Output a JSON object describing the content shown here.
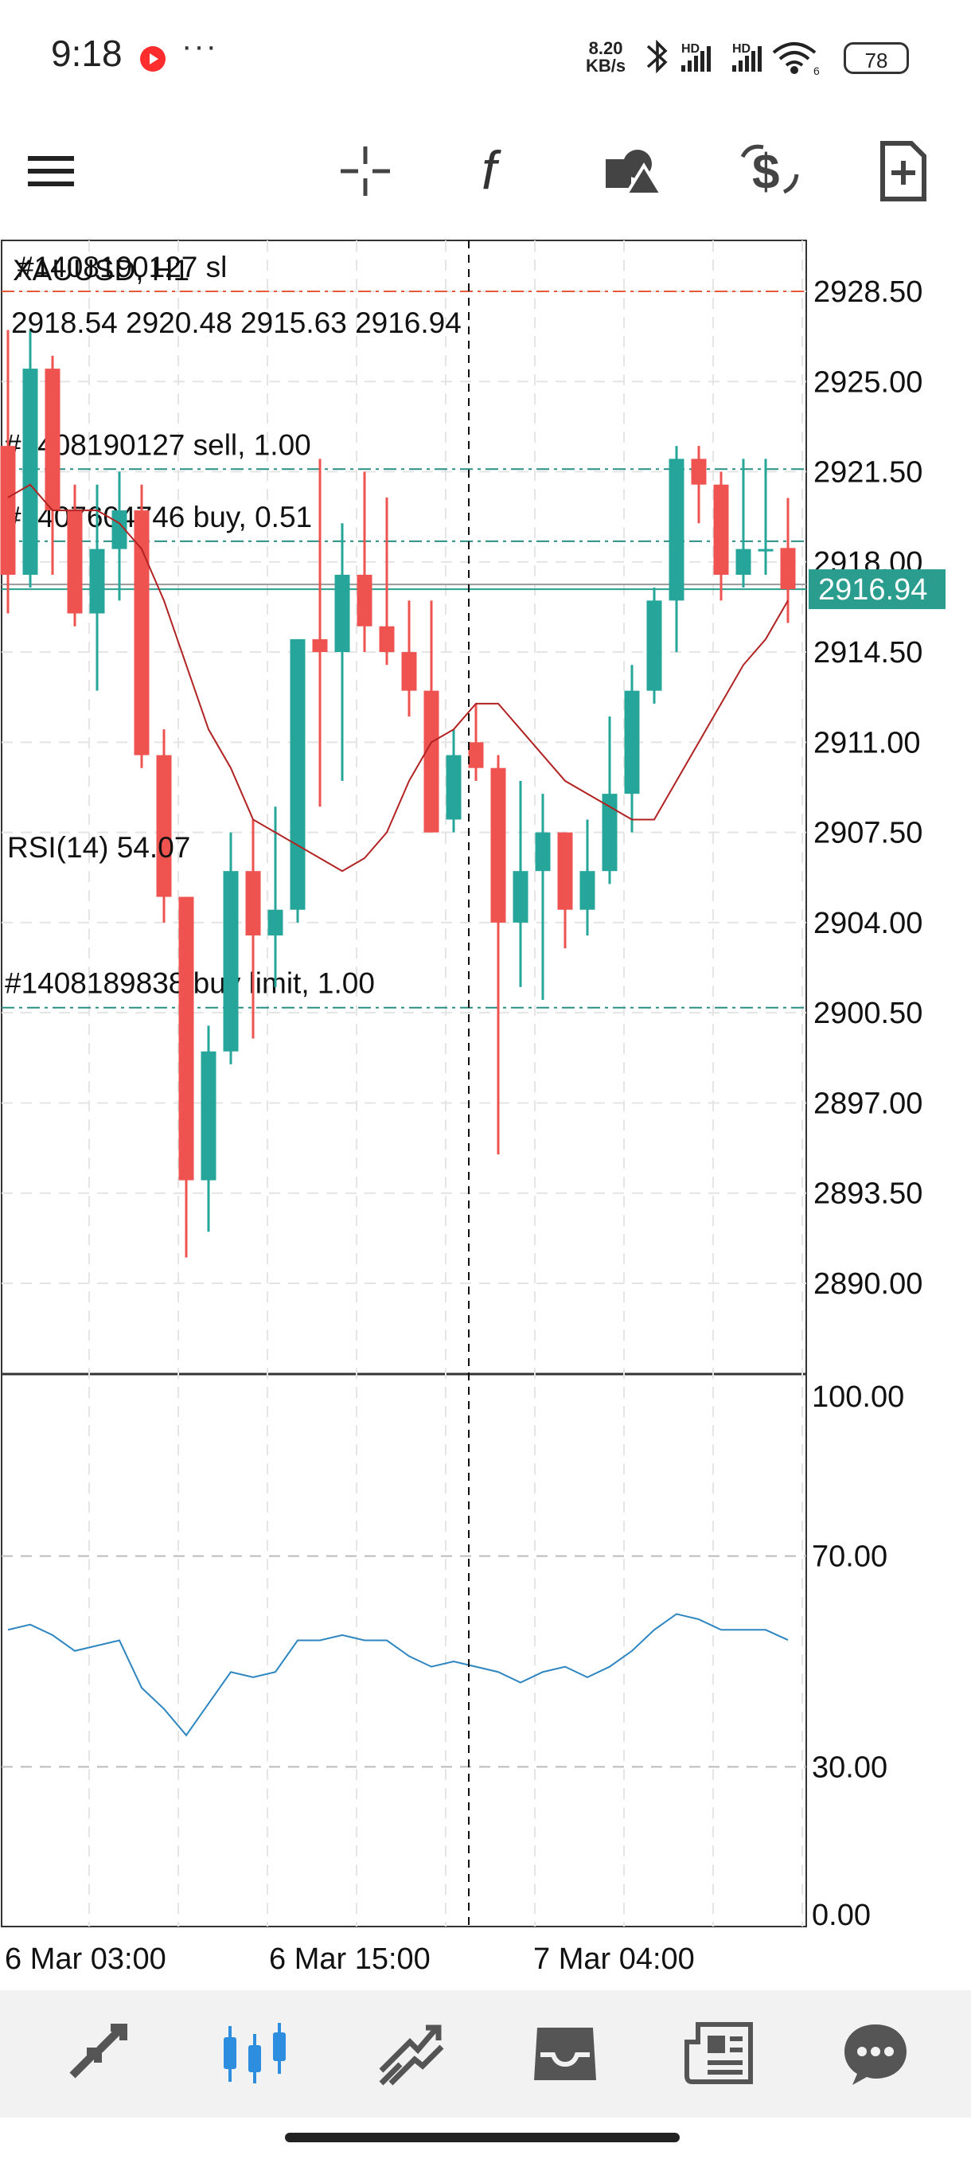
{
  "status_bar": {
    "time": "9:18",
    "net_speed_value": "8.20",
    "net_speed_unit": "KB/s",
    "battery": "78",
    "icons": [
      "record-icon",
      "more-dots-icon",
      "bluetooth-icon",
      "hd-signal-icon",
      "hd-signal-icon",
      "wifi-6-icon"
    ]
  },
  "toolbar": {
    "buttons": [
      "menu-icon",
      "crosshair-icon",
      "indicator-f-icon",
      "objects-icon",
      "currency-icon",
      "new-order-icon"
    ]
  },
  "chart": {
    "symbol": "XAUUSD, H1",
    "ohlc": "2918.54 2920.48 2915.63 2916.94",
    "current_price": "2916.94",
    "orders": [
      {
        "label": "#1408190127 sl",
        "price": 2928.5,
        "color": "#e55a3a"
      },
      {
        "label": "#1408190127 sell, 1.00",
        "price": 2921.6,
        "color": "#2a8f84"
      },
      {
        "label": "#1407604746 buy, 0.51",
        "price": 2918.8,
        "color": "#2a8f84"
      },
      {
        "label": "#1408189838 buy limit, 1.00",
        "price": 2900.7,
        "color": "#2a8f84"
      }
    ],
    "price_axis": [
      "2928.50",
      "2925.00",
      "2921.50",
      "2918.00",
      "2914.50",
      "2911.00",
      "2907.50",
      "2904.00",
      "2900.50",
      "2897.00",
      "2893.50",
      "2890.00"
    ],
    "time_axis": [
      "6 Mar 03:00",
      "6 Mar 15:00",
      "7 Mar 04:00"
    ],
    "rsi": {
      "label": "RSI(14) 54.07",
      "axis": [
        "100.00",
        "70.00",
        "30.00",
        "0.00"
      ]
    }
  },
  "chart_data": {
    "type": "candlestick",
    "symbol": "XAUUSD",
    "timeframe": "H1",
    "ylim": [
      2887,
      2931
    ],
    "candles": [
      {
        "o": 2922.5,
        "h": 2927.0,
        "l": 2916.0,
        "c": 2917.5
      },
      {
        "o": 2917.5,
        "h": 2927.0,
        "l": 2917.0,
        "c": 2925.5
      },
      {
        "o": 2925.5,
        "h": 2926.0,
        "l": 2917.5,
        "c": 2920.0
      },
      {
        "o": 2920.0,
        "h": 2921.0,
        "l": 2915.5,
        "c": 2916.0
      },
      {
        "o": 2916.0,
        "h": 2921.0,
        "l": 2913.0,
        "c": 2918.5
      },
      {
        "o": 2918.5,
        "h": 2921.5,
        "l": 2916.5,
        "c": 2920.0
      },
      {
        "o": 2920.0,
        "h": 2921.0,
        "l": 2910.0,
        "c": 2910.5
      },
      {
        "o": 2910.5,
        "h": 2911.5,
        "l": 2904.0,
        "c": 2905.0
      },
      {
        "o": 2905.0,
        "h": 2905.0,
        "l": 2891.0,
        "c": 2894.0
      },
      {
        "o": 2894.0,
        "h": 2900.0,
        "l": 2892.0,
        "c": 2899.0
      },
      {
        "o": 2899.0,
        "h": 2907.5,
        "l": 2898.5,
        "c": 2906.0
      },
      {
        "o": 2906.0,
        "h": 2908.0,
        "l": 2899.5,
        "c": 2903.5
      },
      {
        "o": 2903.5,
        "h": 2908.5,
        "l": 2901.5,
        "c": 2904.5
      },
      {
        "o": 2904.5,
        "h": 2915.0,
        "l": 2904.0,
        "c": 2915.0
      },
      {
        "o": 2915.0,
        "h": 2922.0,
        "l": 2908.5,
        "c": 2914.5
      },
      {
        "o": 2914.5,
        "h": 2919.5,
        "l": 2909.5,
        "c": 2917.5
      },
      {
        "o": 2917.5,
        "h": 2921.5,
        "l": 2914.5,
        "c": 2915.5
      },
      {
        "o": 2915.5,
        "h": 2920.5,
        "l": 2914.0,
        "c": 2914.5
      },
      {
        "o": 2914.5,
        "h": 2916.5,
        "l": 2912.0,
        "c": 2913.0
      },
      {
        "o": 2913.0,
        "h": 2916.5,
        "l": 2907.5,
        "c": 2907.5
      },
      {
        "o": 2908.0,
        "h": 2911.5,
        "l": 2907.5,
        "c": 2910.5
      },
      {
        "o": 2911.0,
        "h": 2912.5,
        "l": 2909.5,
        "c": 2910.0
      },
      {
        "o": 2910.0,
        "h": 2910.5,
        "l": 2895.0,
        "c": 2904.0
      },
      {
        "o": 2904.0,
        "h": 2909.5,
        "l": 2901.5,
        "c": 2906.0
      },
      {
        "o": 2906.0,
        "h": 2909.0,
        "l": 2901.0,
        "c": 2907.5
      },
      {
        "o": 2907.5,
        "h": 2907.5,
        "l": 2903.0,
        "c": 2904.5
      },
      {
        "o": 2904.5,
        "h": 2908.0,
        "l": 2903.5,
        "c": 2906.0
      },
      {
        "o": 2906.0,
        "h": 2912.0,
        "l": 2905.5,
        "c": 2909.0
      },
      {
        "o": 2909.0,
        "h": 2914.0,
        "l": 2907.5,
        "c": 2913.0
      },
      {
        "o": 2913.0,
        "h": 2917.0,
        "l": 2912.5,
        "c": 2916.5
      },
      {
        "o": 2916.5,
        "h": 2922.5,
        "l": 2914.5,
        "c": 2922.0
      },
      {
        "o": 2922.0,
        "h": 2922.5,
        "l": 2919.5,
        "c": 2921.0
      },
      {
        "o": 2921.0,
        "h": 2921.5,
        "l": 2916.5,
        "c": 2917.5
      },
      {
        "o": 2917.5,
        "h": 2922.0,
        "l": 2917.0,
        "c": 2918.5
      },
      {
        "o": 2918.5,
        "h": 2922.0,
        "l": 2917.5,
        "c": 2918.5
      },
      {
        "o": 2918.54,
        "h": 2920.48,
        "l": 2915.63,
        "c": 2916.94
      }
    ],
    "ma": [
      2920.5,
      2921.0,
      2920.0,
      2920.0,
      2920.0,
      2919.5,
      2918.5,
      2916.5,
      2914.0,
      2911.5,
      2910.0,
      2908.0,
      2907.5,
      2907.0,
      2906.5,
      2906.0,
      2906.5,
      2907.5,
      2909.5,
      2911.0,
      2911.5,
      2912.5,
      2912.5,
      2911.5,
      2910.5,
      2909.5,
      2909.0,
      2908.5,
      2908.0,
      2908.0,
      2909.5,
      2911.0,
      2912.5,
      2914.0,
      2915.0,
      2916.5
    ],
    "rsi": [
      56,
      57,
      55,
      52,
      53,
      54,
      45,
      41,
      36,
      42,
      48,
      47,
      48,
      54,
      54,
      55,
      54,
      54,
      51,
      49,
      50,
      49,
      48,
      46,
      48,
      49,
      47,
      49,
      52,
      56,
      59,
      58,
      56,
      56,
      56,
      54.07
    ]
  },
  "bottom_nav": {
    "items": [
      "quotes-icon",
      "chart-icon",
      "trade-icon",
      "history-icon",
      "news-icon",
      "messages-icon"
    ]
  }
}
